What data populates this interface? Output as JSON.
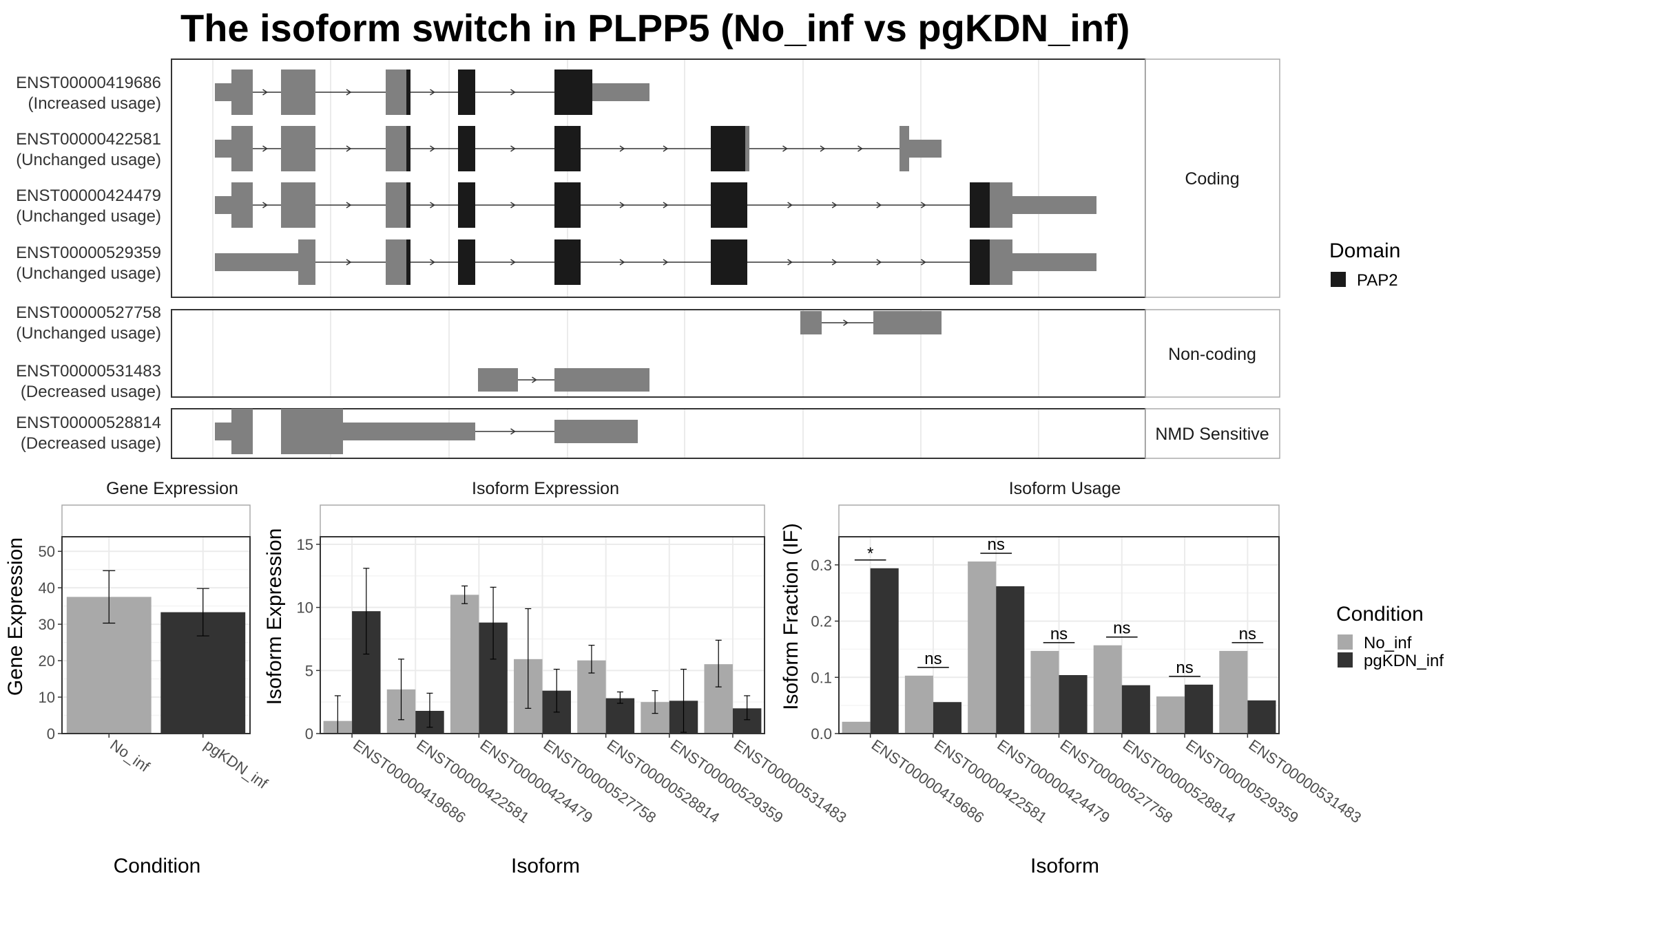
{
  "title": "The isoform switch in PLPP5 (No_inf vs pgKDN_inf)",
  "colors": {
    "region": "#808080",
    "domain": "#1a1a1a",
    "no_inf": "#a9a9a9",
    "pgkdn_inf": "#333333",
    "grid": "#ebebeb",
    "panel_border": "#333333",
    "strip_border": "#aaaaaa"
  },
  "structure": {
    "groups": [
      {
        "label": "Coding",
        "isoforms": [
          {
            "id": "ENST00000419686",
            "usage": "(Increased usage)"
          },
          {
            "id": "ENST00000422581",
            "usage": "(Unchanged usage)"
          },
          {
            "id": "ENST00000424479",
            "usage": "(Unchanged usage)"
          },
          {
            "id": "ENST00000529359",
            "usage": "(Unchanged usage)"
          }
        ]
      },
      {
        "label": "Non-coding",
        "isoforms": [
          {
            "id": "ENST00000527758",
            "usage": "(Unchanged usage)"
          },
          {
            "id": "ENST00000531483",
            "usage": "(Decreased usage)"
          }
        ]
      },
      {
        "label": "NMD Sensitive",
        "isoforms": [
          {
            "id": "ENST00000528814",
            "usage": "(Decreased usage)"
          }
        ]
      }
    ],
    "legend": {
      "title": "Domain",
      "items": [
        {
          "label": "PAP2",
          "color": "#1a1a1a"
        }
      ]
    }
  },
  "chart_data": [
    {
      "type": "bar",
      "title": "Gene Expression",
      "xlabel": "Condition",
      "ylabel": "Gene Expression",
      "categories": [
        "No_inf",
        "pgKDN_inf"
      ],
      "values": [
        37.5,
        33.3
      ],
      "error_low": [
        30.3,
        26.8
      ],
      "error_high": [
        44.7,
        39.8
      ],
      "ylim": [
        0,
        54
      ],
      "yticks": [
        0,
        10,
        20,
        30,
        40,
        50
      ]
    },
    {
      "type": "bar",
      "title": "Isoform Expression",
      "xlabel": "Isoform",
      "ylabel": "Isoform Expression",
      "categories": [
        "ENST00000419686",
        "ENST00000422581",
        "ENST00000424479",
        "ENST00000527758",
        "ENST00000528814",
        "ENST00000529359",
        "ENST00000531483"
      ],
      "series": [
        {
          "name": "No_inf",
          "values": [
            1.0,
            3.5,
            11.0,
            5.9,
            5.8,
            2.5,
            5.5
          ],
          "error_low": [
            0.0,
            1.1,
            10.3,
            2.0,
            4.8,
            1.6,
            3.7
          ],
          "error_high": [
            3.0,
            5.9,
            11.7,
            9.9,
            7.0,
            3.4,
            7.4
          ]
        },
        {
          "name": "pgKDN_inf",
          "values": [
            9.7,
            1.8,
            8.8,
            3.4,
            2.8,
            2.6,
            2.0
          ],
          "error_low": [
            6.3,
            0.5,
            5.9,
            1.7,
            2.4,
            0.1,
            1.1
          ],
          "error_high": [
            13.1,
            3.2,
            11.6,
            5.1,
            3.3,
            5.1,
            3.0
          ]
        }
      ],
      "ylim": [
        0,
        15.6
      ],
      "yticks": [
        0,
        5,
        10,
        15
      ]
    },
    {
      "type": "bar",
      "title": "Isoform Usage",
      "xlabel": "Isoform",
      "ylabel": "Isoform Fraction (IF)",
      "categories": [
        "ENST00000419686",
        "ENST00000422581",
        "ENST00000424479",
        "ENST00000527758",
        "ENST00000528814",
        "ENST00000529359",
        "ENST00000531483"
      ],
      "series": [
        {
          "name": "No_inf",
          "values": [
            0.021,
            0.103,
            0.306,
            0.147,
            0.157,
            0.066,
            0.147
          ]
        },
        {
          "name": "pgKDN_inf",
          "values": [
            0.294,
            0.056,
            0.262,
            0.104,
            0.086,
            0.087,
            0.059
          ]
        }
      ],
      "significance": [
        "*",
        "ns",
        "ns",
        "ns",
        "ns",
        "ns",
        "ns"
      ],
      "ylim": [
        0,
        0.35
      ],
      "yticks": [
        0.0,
        0.1,
        0.2,
        0.3
      ]
    }
  ],
  "condition_legend": {
    "title": "Condition",
    "items": [
      {
        "label": "No_inf",
        "color": "#a9a9a9"
      },
      {
        "label": "pgKDN_inf",
        "color": "#333333"
      }
    ]
  }
}
